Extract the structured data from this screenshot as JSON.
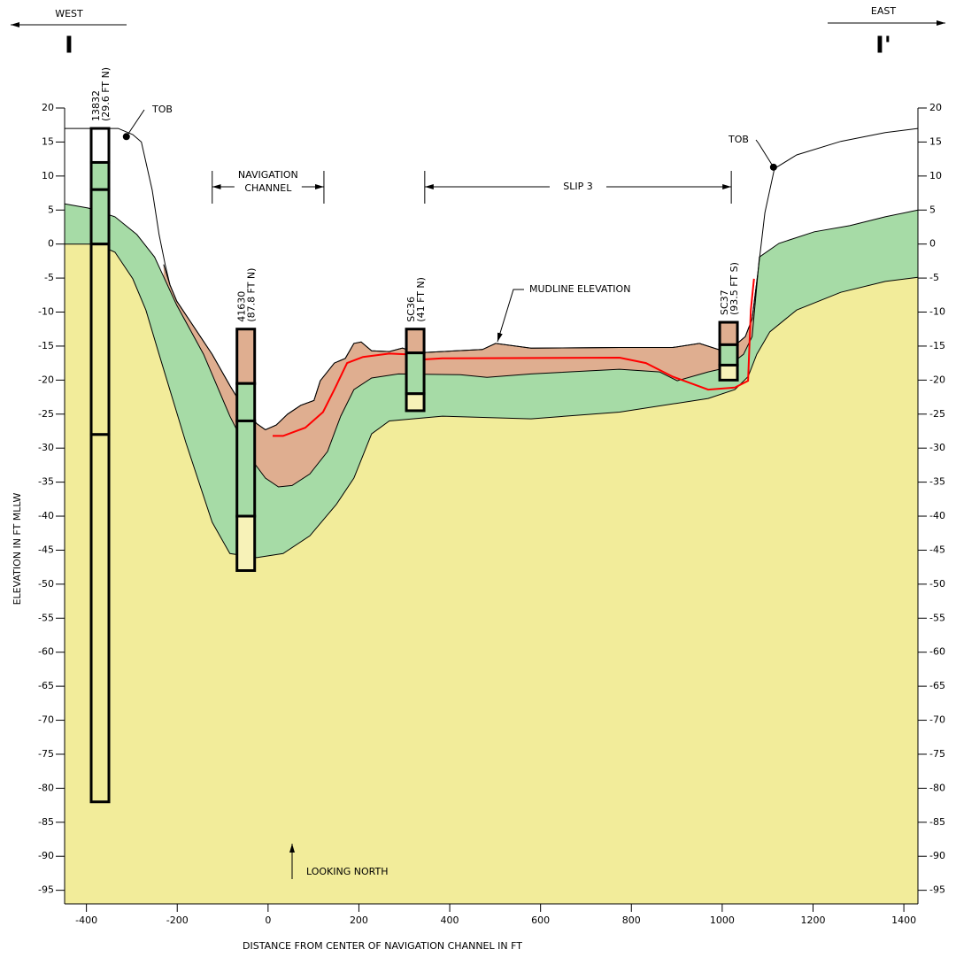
{
  "header": {
    "west": "WEST",
    "east": "EAST",
    "section_start": "I",
    "section_end": "I'"
  },
  "chart_data": {
    "type": "cross-section",
    "xlabel": "DISTANCE FROM CENTER OF NAVIGATION CHANNEL IN FT",
    "ylabel": "ELEVATION IN FT MLLW",
    "xlim": [
      -448,
      1431
    ],
    "ylim": [
      -97,
      20
    ],
    "xticks": [
      -400,
      -200,
      0,
      200,
      400,
      600,
      800,
      1000,
      1200,
      1400
    ],
    "yticks": [
      20,
      15,
      10,
      5,
      0,
      -5,
      -10,
      -15,
      -20,
      -25,
      -30,
      -35,
      -40,
      -45,
      -50,
      -55,
      -60,
      -65,
      -70,
      -75,
      -80,
      -85,
      -90,
      -95
    ],
    "surface": {
      "color": "#000000",
      "x": [
        -448,
        -330,
        -298,
        -279,
        -255,
        -240,
        -226,
        -216,
        -201,
        -172,
        -123,
        -84,
        -55,
        -25,
        -6,
        18,
        43,
        72,
        101,
        115,
        146,
        170,
        189,
        205,
        228,
        267,
        296,
        326,
        384,
        472,
        501,
        579,
        774,
        891,
        950,
        992,
        1028,
        1051,
        1066,
        1078,
        1094,
        1115,
        1164,
        1261,
        1359,
        1431
      ],
      "values": [
        17,
        17,
        16.1,
        15,
        7.9,
        1.4,
        -3.2,
        -6,
        -8.4,
        -11.3,
        -16.2,
        -20.8,
        -24,
        -26.4,
        -27.3,
        -26.6,
        -25,
        -23.7,
        -23,
        -20.1,
        -17.5,
        -16.8,
        -14.6,
        -14.4,
        -15.7,
        -15.8,
        -15.3,
        -16,
        -15.8,
        -15.5,
        -14.6,
        -15.3,
        -15.2,
        -15.2,
        -14.6,
        -15.5,
        -14.9,
        -13.6,
        -11,
        -4.5,
        4.6,
        11.1,
        13.1,
        15.1,
        16.4,
        17
      ]
    },
    "layers": [
      {
        "color": "#dfae90",
        "x": [
          -230,
          -216,
          -201,
          -172,
          -123,
          -84,
          -55,
          -25,
          -6,
          18,
          43,
          72,
          101,
          115,
          146,
          170,
          189,
          205,
          228,
          267,
          296,
          326,
          384,
          472,
          501,
          579,
          774,
          891,
          950,
          992,
          1028,
          1051,
          1066,
          1078
        ],
        "values": [
          -3,
          -6,
          -8.4,
          -11.3,
          -16.2,
          -20.8,
          -24,
          -26.4,
          -27.3,
          -26.6,
          -25,
          -23.7,
          -23,
          -20.1,
          -17.5,
          -16.8,
          -14.6,
          -14.4,
          -15.7,
          -15.8,
          -15.3,
          -16,
          -15.8,
          -15.5,
          -14.6,
          -15.3,
          -15.2,
          -15.2,
          -14.6,
          -15.5,
          -14.9,
          -13.6,
          -11,
          -4.5
        ]
      },
      {
        "color": "#a6dba6",
        "x": [
          -448,
          -396,
          -337,
          -289,
          -250,
          -201,
          -142,
          -84,
          -35,
          -6,
          23,
          53,
          92,
          131,
          160,
          189,
          228,
          287,
          423,
          482,
          579,
          774,
          862,
          901,
          969,
          1008,
          1047,
          1066,
          1082,
          1125,
          1203,
          1281,
          1359,
          1431
        ],
        "values": [
          5.9,
          5.3,
          4,
          1.4,
          -1.9,
          -9,
          -16.2,
          -25.3,
          -31.8,
          -34.4,
          -35.7,
          -35.5,
          -33.8,
          -30.5,
          -25.3,
          -21.4,
          -19.7,
          -19.1,
          -19.2,
          -19.6,
          -19.1,
          -18.4,
          -18.8,
          -20.1,
          -18.8,
          -18.2,
          -16.2,
          -13.6,
          -1.9,
          0.1,
          1.8,
          2.7,
          4,
          5
        ]
      },
      {
        "color": "#f2ec9a",
        "x": [
          -448,
          -376,
          -337,
          -298,
          -269,
          -240,
          -181,
          -123,
          -84,
          -25,
          33,
          92,
          150,
          189,
          228,
          267,
          384,
          579,
          774,
          969,
          1028,
          1057,
          1076,
          1105,
          1164,
          1261,
          1359,
          1431
        ],
        "values": [
          0,
          0,
          -1.2,
          -5.1,
          -9.7,
          -16.2,
          -29.2,
          -40.9,
          -45.5,
          -46.1,
          -45.5,
          -42.9,
          -38.3,
          -34.4,
          -27.9,
          -26,
          -25.3,
          -25.7,
          -24.7,
          -22.7,
          -21.4,
          -19.5,
          -16.2,
          -12.9,
          -9.7,
          -7.1,
          -5.5,
          -4.9
        ]
      }
    ],
    "red_line": {
      "color": "#ff0000",
      "x": [
        10,
        33,
        82,
        121,
        146,
        174,
        209,
        267,
        306,
        335,
        384,
        774,
        832,
        891,
        969,
        1028,
        1057,
        1063,
        1070
      ],
      "values": [
        -28.2,
        -28.2,
        -27,
        -24.7,
        -21.4,
        -17.5,
        -16.6,
        -16.1,
        -16.2,
        -17,
        -16.8,
        -16.7,
        -17.5,
        -19.5,
        -21.4,
        -21.1,
        -20.1,
        -9.7,
        -5.1
      ]
    },
    "borings": [
      {
        "label": "13832",
        "offset": "(29.6 FT N)",
        "x": -370,
        "elevations": [
          17,
          12,
          8,
          0,
          -28,
          -82
        ],
        "colors": [
          "#ffffff",
          "#a6dba6",
          "#a6dba6",
          "#f2ec9a",
          "#f2ec9a"
        ]
      },
      {
        "label": "41630",
        "offset": "(87.8 FT N)",
        "x": -49,
        "elevations": [
          -12.5,
          -20.5,
          -26,
          -40,
          -48
        ],
        "colors": [
          "#dfae90",
          "#a6dba6",
          "#a6dba6",
          "#f7f2b8"
        ]
      },
      {
        "label": "SC36",
        "offset": "(41 FT N)",
        "x": 324,
        "elevations": [
          -12.5,
          -16,
          -22,
          -24.5
        ],
        "colors": [
          "#dfae90",
          "#a6dba6",
          "#f7f2b8"
        ]
      },
      {
        "label": "SC37",
        "offset": "(93.5 FT S)",
        "x": 1014,
        "elevations": [
          -11.5,
          -14.8,
          -17.8,
          -20
        ],
        "colors": [
          "#dfae90",
          "#a6dba6",
          "#f7f2b8"
        ]
      }
    ],
    "tob": [
      {
        "label": "TOB",
        "x": -312,
        "value": 15.8
      },
      {
        "label": "TOB",
        "x": 1113,
        "value": 11.3
      }
    ],
    "spans": [
      {
        "lines": [
          "NAVIGATION",
          "CHANNEL"
        ],
        "x": [
          -123,
          123
        ]
      },
      {
        "lines": [
          "SLIP 3"
        ],
        "x": [
          345,
          1020
        ]
      }
    ],
    "mudline_label": "MUDLINE ELEVATION",
    "looking_label": "LOOKING NORTH"
  }
}
